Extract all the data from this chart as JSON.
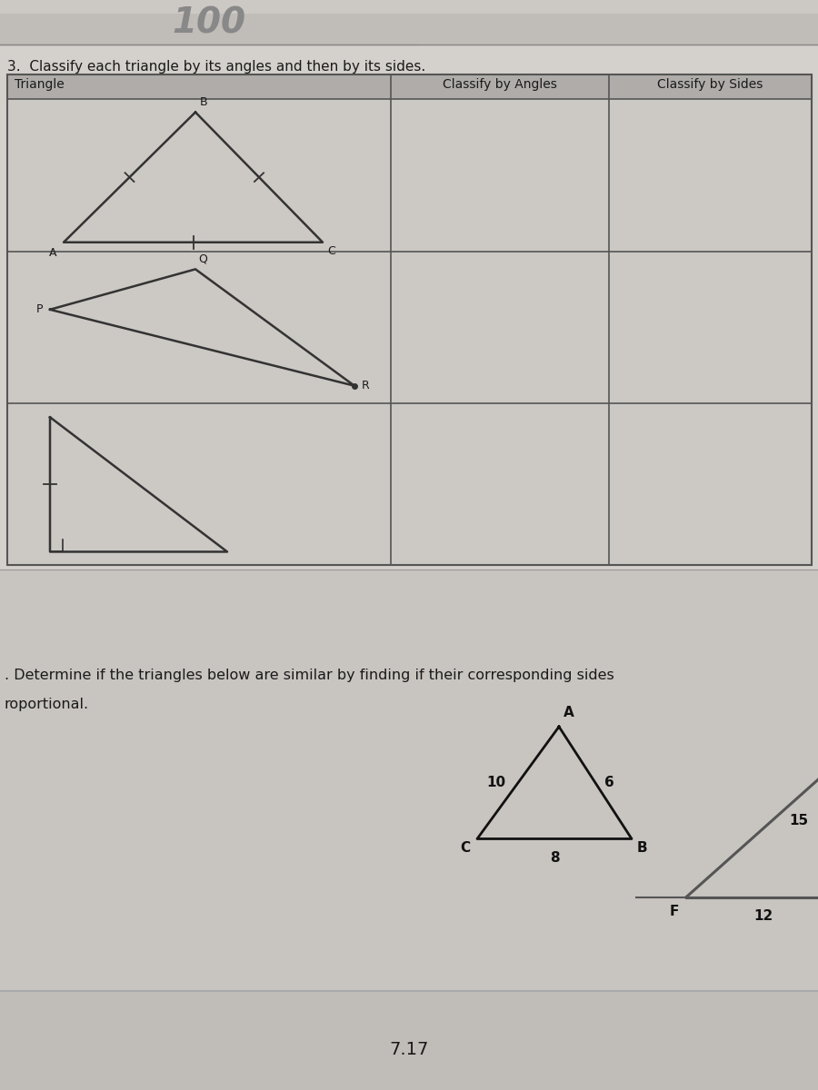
{
  "page_bg_top": "#ccc8c4",
  "page_bg_bottom": "#c4c0bc",
  "white_cell": "#d8d4d0",
  "line_color": "#666666",
  "text_color": "#1a1a1a",
  "dark_text": "#111111",
  "question3_text": "3.  Classify each triangle by its angles and then by its sides.",
  "col_headers": [
    "Triangle",
    "Classify by Angles",
    "Classify by Sides"
  ],
  "question4_line1": ". Determine if the triangles below are similar by finding if their corresponding sides",
  "question4_line2": "roportional.",
  "page_number": "7.17",
  "header_bg": "#b0acaa"
}
